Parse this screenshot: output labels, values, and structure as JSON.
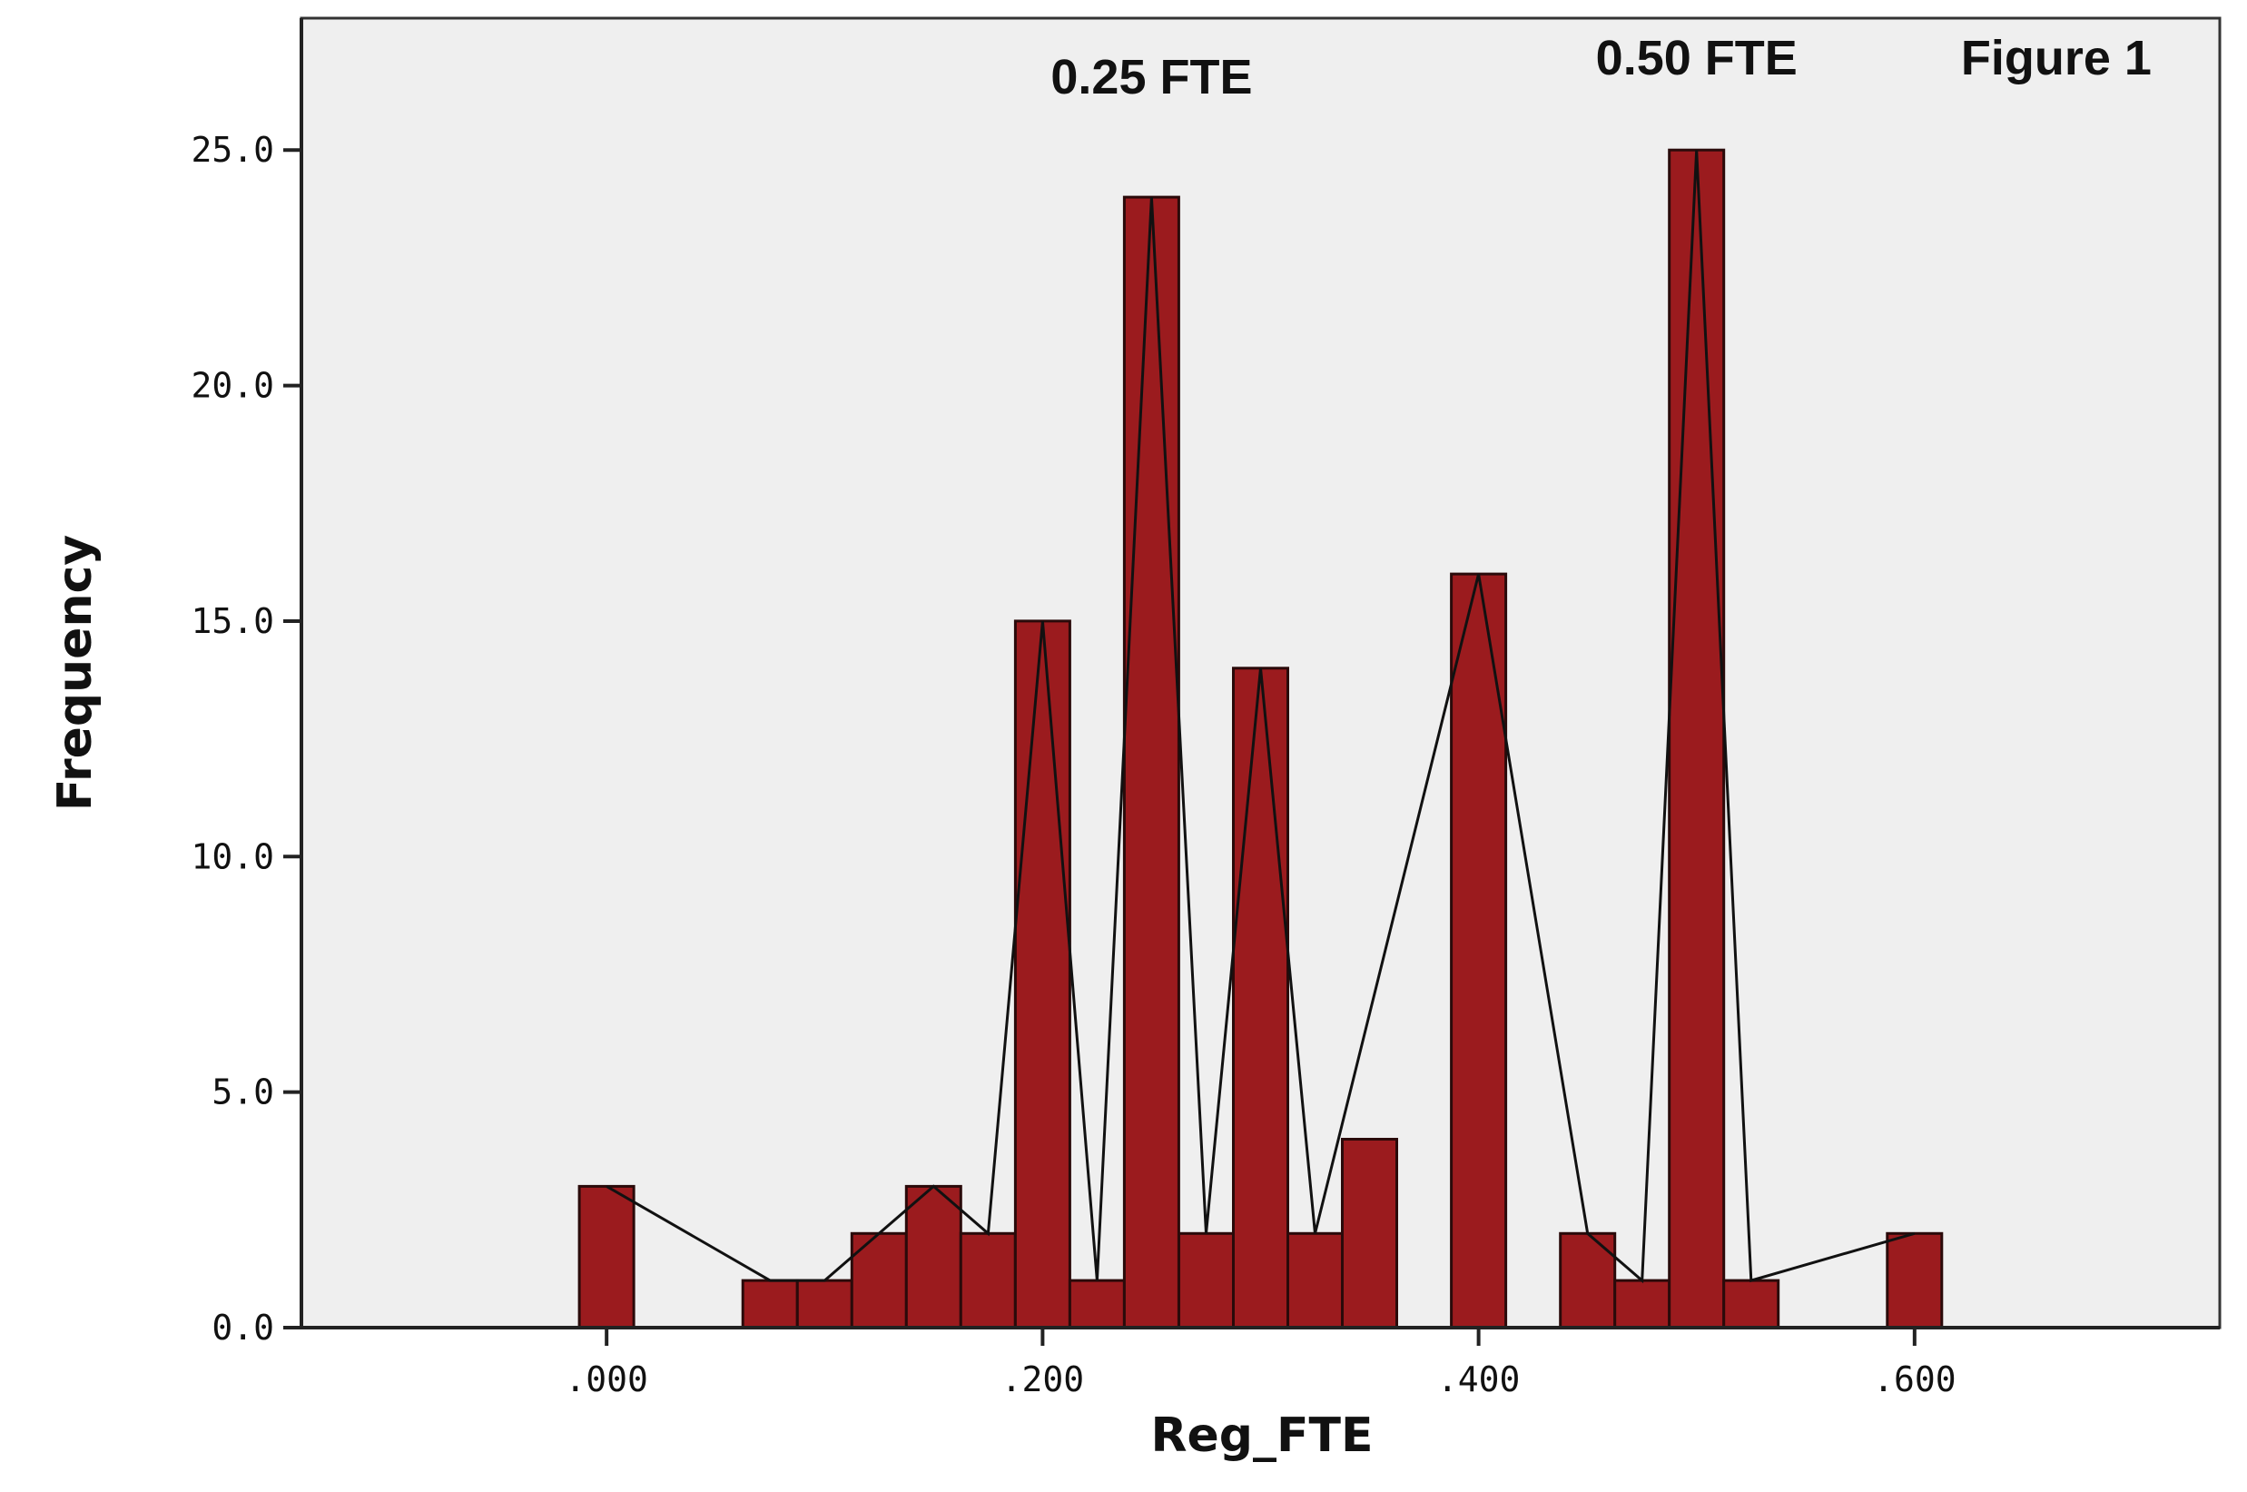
{
  "chart_data": {
    "type": "bar",
    "title": "",
    "xlabel": "Reg_FTE",
    "ylabel": "Frequency",
    "xlim": [
      -0.14,
      0.74
    ],
    "ylim": [
      0,
      27.8
    ],
    "x_ticks": [
      {
        "value": 0.0,
        "label": ".000"
      },
      {
        "value": 0.2,
        "label": ".200"
      },
      {
        "value": 0.4,
        "label": ".400"
      },
      {
        "value": 0.6,
        "label": ".600"
      }
    ],
    "y_ticks": [
      {
        "value": 0,
        "label": "0.0"
      },
      {
        "value": 5,
        "label": "5.0"
      },
      {
        "value": 10,
        "label": "10.0"
      },
      {
        "value": 15,
        "label": "15.0"
      },
      {
        "value": 20,
        "label": "20.0"
      },
      {
        "value": 25,
        "label": "25.0"
      }
    ],
    "bin_width": 0.025,
    "bins": [
      {
        "x": 0.0,
        "y": 3
      },
      {
        "x": 0.075,
        "y": 1
      },
      {
        "x": 0.1,
        "y": 1
      },
      {
        "x": 0.125,
        "y": 2
      },
      {
        "x": 0.15,
        "y": 3
      },
      {
        "x": 0.175,
        "y": 2
      },
      {
        "x": 0.2,
        "y": 15
      },
      {
        "x": 0.225,
        "y": 1
      },
      {
        "x": 0.25,
        "y": 24
      },
      {
        "x": 0.275,
        "y": 2
      },
      {
        "x": 0.3,
        "y": 14
      },
      {
        "x": 0.325,
        "y": 2
      },
      {
        "x": 0.35,
        "y": 4
      },
      {
        "x": 0.4,
        "y": 16
      },
      {
        "x": 0.45,
        "y": 2
      },
      {
        "x": 0.475,
        "y": 1
      },
      {
        "x": 0.5,
        "y": 25
      },
      {
        "x": 0.525,
        "y": 1
      },
      {
        "x": 0.6,
        "y": 2
      }
    ],
    "polygon": [
      {
        "x": 0.0,
        "y": 3
      },
      {
        "x": 0.075,
        "y": 1
      },
      {
        "x": 0.1,
        "y": 1
      },
      {
        "x": 0.15,
        "y": 3
      },
      {
        "x": 0.175,
        "y": 2
      },
      {
        "x": 0.2,
        "y": 15
      },
      {
        "x": 0.225,
        "y": 1
      },
      {
        "x": 0.25,
        "y": 24
      },
      {
        "x": 0.275,
        "y": 2
      },
      {
        "x": 0.3,
        "y": 14
      },
      {
        "x": 0.325,
        "y": 2
      },
      {
        "x": 0.4,
        "y": 16
      },
      {
        "x": 0.45,
        "y": 2
      },
      {
        "x": 0.475,
        "y": 1
      },
      {
        "x": 0.5,
        "y": 25
      },
      {
        "x": 0.525,
        "y": 1
      },
      {
        "x": 0.6,
        "y": 2
      }
    ],
    "annotations": [
      {
        "text": "0.25 FTE",
        "x": 0.25,
        "y": 26.2
      },
      {
        "text": "0.50 FTE",
        "x": 0.5,
        "y": 26.6
      },
      {
        "text": "Figure 1",
        "x": 0.665,
        "y": 26.6
      }
    ],
    "colors": {
      "bar_fill": "#9b1b1e",
      "bar_edge": "#2a0a0a",
      "line": "#111111",
      "plot_background": "#efefef",
      "frame": "#333333"
    },
    "grid": false,
    "legend": "none"
  }
}
